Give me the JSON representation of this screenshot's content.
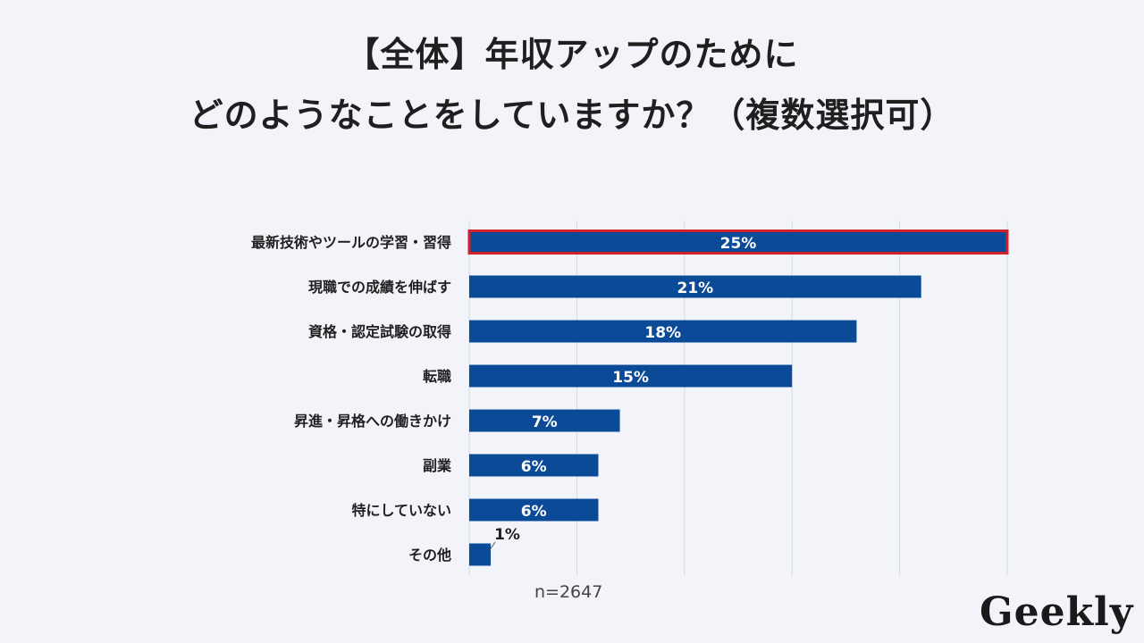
{
  "title": {
    "line1": "【全体】年収アップのために",
    "line2": "どのようなことをしていますか？（複数選択可）"
  },
  "sample_size": "n=2647",
  "logo": "Geekly",
  "colors": {
    "bar": "#0a4a96",
    "highlight_border": "#d4202a",
    "grid": "#d6d9e2",
    "background": "#f2f4f9"
  },
  "chart_data": {
    "type": "bar",
    "orientation": "horizontal",
    "title": "",
    "xlabel": "",
    "ylabel": "",
    "xlim": [
      0,
      25
    ],
    "grid": true,
    "categories": [
      "最新技術やツールの学習・習得",
      "現職での成績を伸ばす",
      "資格・認定試験の取得",
      "転職",
      "昇進・昇格への働きかけ",
      "副業",
      "特にしていない",
      "その他"
    ],
    "values": [
      25,
      21,
      18,
      15,
      7,
      6,
      6,
      1
    ],
    "value_labels": [
      "25%",
      "21%",
      "18%",
      "15%",
      "7%",
      "6%",
      "6%",
      "1%"
    ],
    "highlighted": [
      "最新技術やツールの学習・習得"
    ]
  }
}
